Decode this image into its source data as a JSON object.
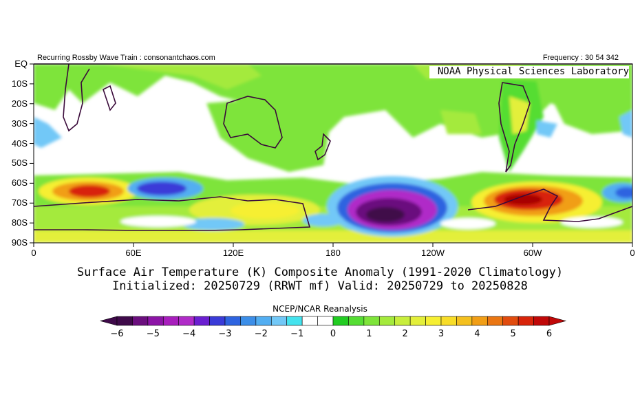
{
  "header": {
    "left": "Recurring Rossby Wave Train : consonantchaos.com",
    "right": "Frequency : 30 54 342",
    "lab": "NOAA Physical Sciences Laboratory"
  },
  "map": {
    "lat_labels": [
      "EQ",
      "10S",
      "20S",
      "30S",
      "40S",
      "50S",
      "60S",
      "70S",
      "80S",
      "90S"
    ],
    "lon_labels": [
      "0",
      "60E",
      "120E",
      "180",
      "120W",
      "60W",
      "0"
    ]
  },
  "titles": {
    "line1": "Surface Air Temperature (K) Composite Anomaly (1991-2020 Climatology)",
    "line2": "Initialized: 20250729 (RRWT mf) Valid: 20250729 to 20250828"
  },
  "colorbar": {
    "source": "NCEP/NCAR Reanalysis",
    "ticks": [
      "-6",
      "-5",
      "-4",
      "-3",
      "-2",
      "-1",
      "0",
      "1",
      "2",
      "3",
      "4",
      "5",
      "6"
    ],
    "colors": [
      "#3f0a4a",
      "#6b0f7e",
      "#8c14a6",
      "#a81ebd",
      "#b02bc8",
      "#6b1fd1",
      "#3a3bd8",
      "#2e64e0",
      "#3c8ee8",
      "#52aef2",
      "#72c8f7",
      "#44e3ee",
      "#ffffff",
      "#ffffff",
      "#22cc22",
      "#55dd33",
      "#7ee43a",
      "#a4ea3c",
      "#c8ee3c",
      "#e3ef3a",
      "#f6ef32",
      "#f8dd28",
      "#f4c01e",
      "#f19e16",
      "#ea7612",
      "#e14c0e",
      "#d8240a",
      "#c00808"
    ]
  }
}
